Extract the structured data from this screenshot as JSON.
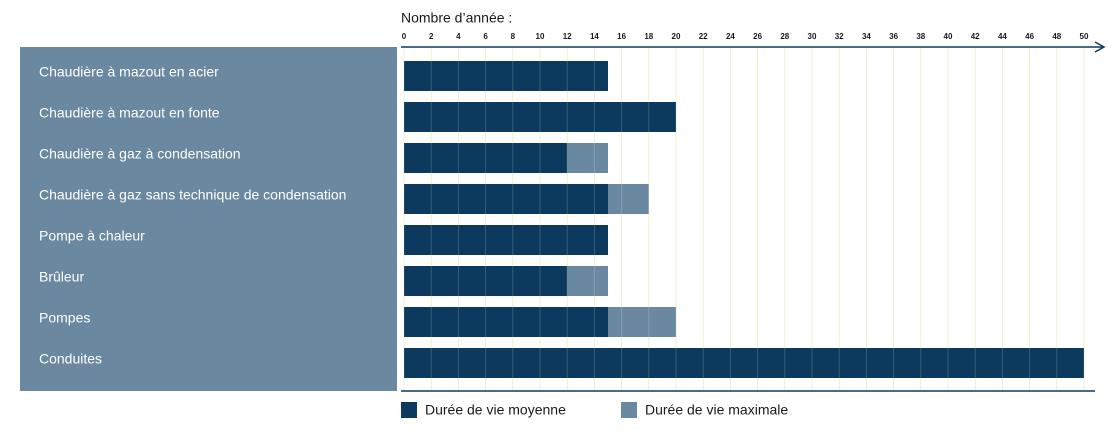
{
  "chart_data": {
    "type": "bar",
    "orientation": "horizontal",
    "overlap": true,
    "x_label": "Nombre d’année :",
    "categories": [
      "Chaudière à mazout en acier",
      "Chaudière à mazout en fonte",
      "Chaudière à gaz à condensation",
      "Chaudière à gaz sans technique de condensation",
      "Pompe à chaleur",
      "Brûleur",
      "Pompes",
      "Conduites"
    ],
    "series": [
      {
        "name": "Durée de vie moyenne",
        "color": "#0b3a5e",
        "values": [
          15,
          20,
          12,
          15,
          15,
          12,
          15,
          50
        ]
      },
      {
        "name": "Durée de vie maximale",
        "color": "#6a889f",
        "values": [
          15,
          20,
          15,
          18,
          15,
          15,
          20,
          50
        ]
      }
    ],
    "xlim": [
      0,
      50
    ],
    "xticks": [
      0,
      2,
      4,
      6,
      8,
      10,
      12,
      14,
      16,
      18,
      20,
      22,
      24,
      26,
      28,
      30,
      32,
      34,
      36,
      38,
      40,
      42,
      44,
      46,
      48,
      50
    ],
    "grid": true,
    "panel_color": "#6a889f",
    "legend": "bottom"
  }
}
